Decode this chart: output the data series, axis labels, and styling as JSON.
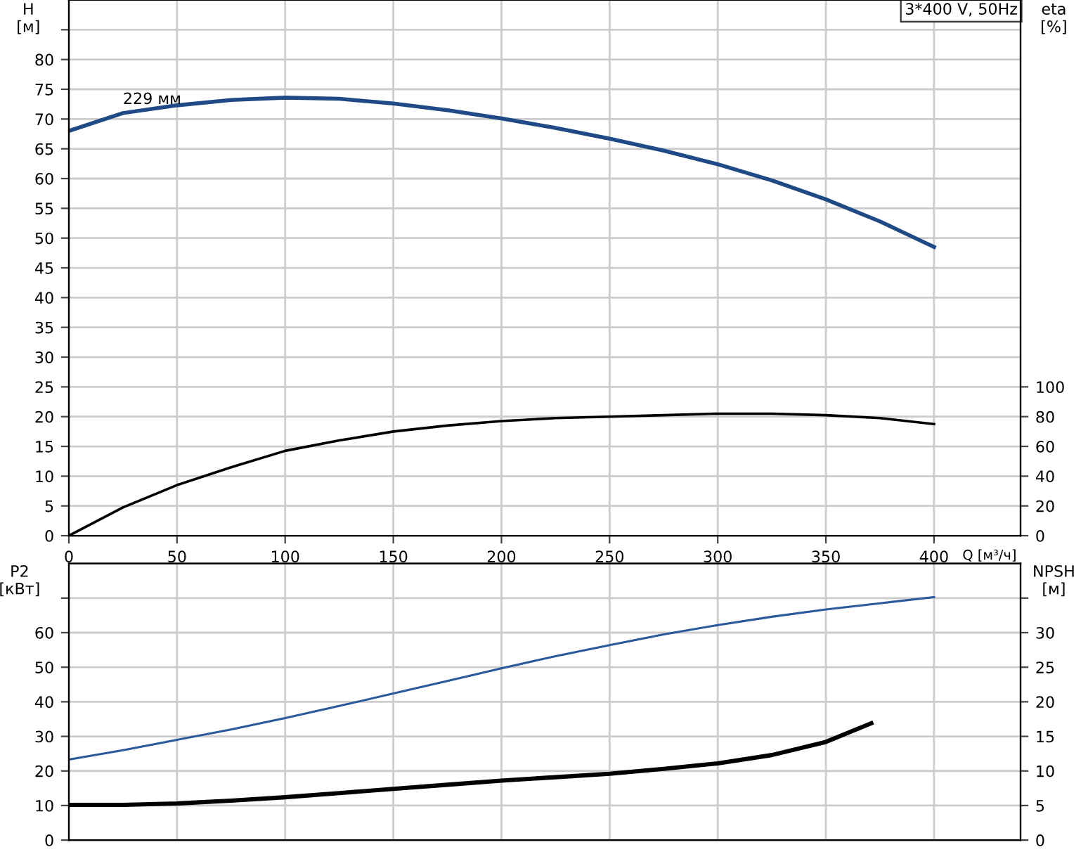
{
  "chart_data": [
    {
      "type": "line",
      "title": "3*400 V, 50Hz",
      "ylabel": "H\n[м]",
      "y2label": "eta\n[%]",
      "xlabel": "Q [м³/ч]",
      "annotations": [
        {
          "text": "229 мм",
          "x": 25,
          "y": 71
        }
      ],
      "series": [
        {
          "color": "#1f4a86",
          "x": [
            0,
            25,
            50,
            75,
            100,
            125,
            150,
            175,
            200,
            225,
            250,
            275,
            300,
            325,
            350,
            375,
            400
          ],
          "values": [
            68,
            71,
            72.3,
            73.2,
            73.6,
            73.4,
            72.6,
            71.5,
            70.1,
            68.5,
            66.7,
            64.7,
            62.4,
            59.7,
            56.5,
            52.8,
            48.5
          ]
        },
        {
          "color": "#000000",
          "axis": "y2",
          "x": [
            0,
            25,
            50,
            75,
            100,
            125,
            150,
            175,
            200,
            225,
            250,
            275,
            300,
            325,
            350,
            375,
            400
          ],
          "values": [
            0,
            19,
            34,
            46,
            57,
            64,
            70,
            74,
            77,
            79,
            80,
            81,
            82,
            82,
            81,
            79,
            75
          ]
        }
      ],
      "xlim": [
        0,
        440
      ],
      "xticks": [
        0,
        50,
        100,
        150,
        200,
        250,
        300,
        350,
        400
      ],
      "ylim": [
        0,
        90
      ],
      "yticks": [
        0,
        5,
        10,
        15,
        20,
        25,
        30,
        35,
        40,
        45,
        50,
        55,
        60,
        65,
        70,
        75,
        80,
        {
          "value": 85,
          "label": null
        }
      ],
      "y2lim": [
        0,
        360
      ],
      "y2ticks": [
        0,
        20,
        40,
        60,
        80,
        100
      ],
      "grid": true,
      "legend": false,
      "marker": "none",
      "line_style": "solid"
    },
    {
      "type": "line",
      "ylabel": "P2\n[кВт]",
      "y2label": "NPSH\n[м]",
      "series": [
        {
          "color": "#2a5a9c",
          "x": [
            0,
            25,
            50,
            75,
            100,
            125,
            150,
            175,
            200,
            225,
            250,
            275,
            300,
            325,
            350,
            375,
            400
          ],
          "values": [
            23.3,
            26,
            29,
            32,
            35.3,
            38.8,
            42.4,
            46,
            49.7,
            53.2,
            56.4,
            59.5,
            62.2,
            64.6,
            66.7,
            68.5,
            70.3
          ]
        },
        {
          "color": "#000000",
          "axis": "y2",
          "x": [
            0,
            25,
            50,
            75,
            100,
            125,
            150,
            175,
            200,
            225,
            250,
            275,
            300,
            325,
            350,
            371
          ],
          "values": [
            5.1,
            5.1,
            5.3,
            5.7,
            6.2,
            6.8,
            7.4,
            8.0,
            8.6,
            9.1,
            9.6,
            10.3,
            11.1,
            12.3,
            14.2,
            16.9
          ]
        }
      ],
      "xlim": [
        0,
        440
      ],
      "xticks": [
        0,
        50,
        100,
        150,
        200,
        250,
        300,
        350,
        400
      ],
      "tick_labels": "y",
      "ylim": [
        0,
        80
      ],
      "yticks": [
        0,
        10,
        20,
        30,
        40,
        50,
        60,
        {
          "value": 70,
          "label": null
        }
      ],
      "y2lim": [
        0,
        40
      ],
      "y2ticks": [
        0,
        5,
        10,
        15,
        20,
        25,
        30,
        {
          "value": 35,
          "label": null
        }
      ],
      "grid": true,
      "legend": false,
      "marker": "none",
      "line_style": "solid"
    }
  ]
}
